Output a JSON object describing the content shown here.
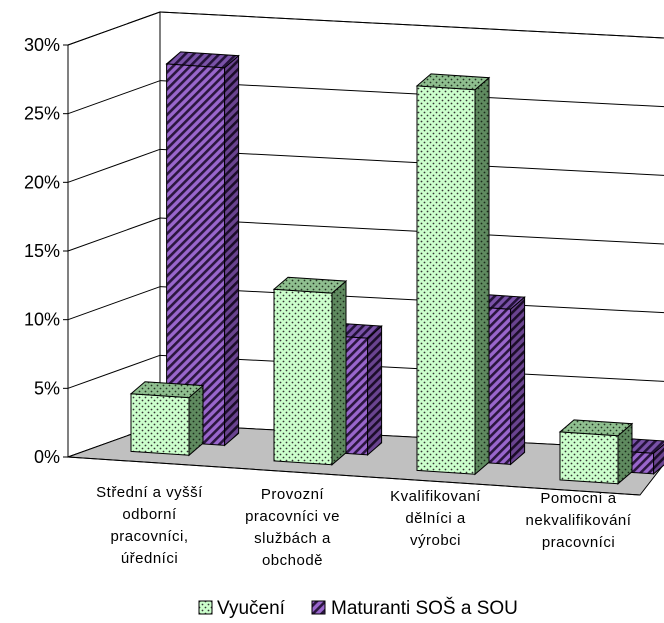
{
  "chart_data": {
    "type": "bar",
    "style": "3d-clustered-column",
    "y_tick_labels": [
      "0%",
      "5%",
      "10%",
      "15%",
      "20%",
      "25%",
      "30%"
    ],
    "ylim": [
      0,
      30
    ],
    "grid": true,
    "categories": [
      [
        "Střední a vyšší",
        "odborní",
        "pracovníci,",
        "úředníci"
      ],
      [
        "Provozní",
        "pracovníci ve",
        "službách a",
        "obchodě"
      ],
      [
        "Kvalifikovaní",
        "dělníci a",
        "výrobci"
      ],
      [
        "Pomocní a",
        "nekvalifikování",
        "pracovníci"
      ]
    ],
    "series": [
      {
        "name": "Vyučení",
        "values": [
          4.2,
          12.5,
          28.0,
          3.5
        ],
        "color": "#ccffcc",
        "pattern": "dots"
      },
      {
        "name": "Maturanti SOŠ a SOU",
        "values": [
          27.5,
          8.5,
          11.3,
          1.5
        ],
        "color": "#9966cc",
        "pattern": "diagonal-stripes"
      }
    ],
    "legend_position": "bottom",
    "floor_color": "#c0c0c0"
  }
}
